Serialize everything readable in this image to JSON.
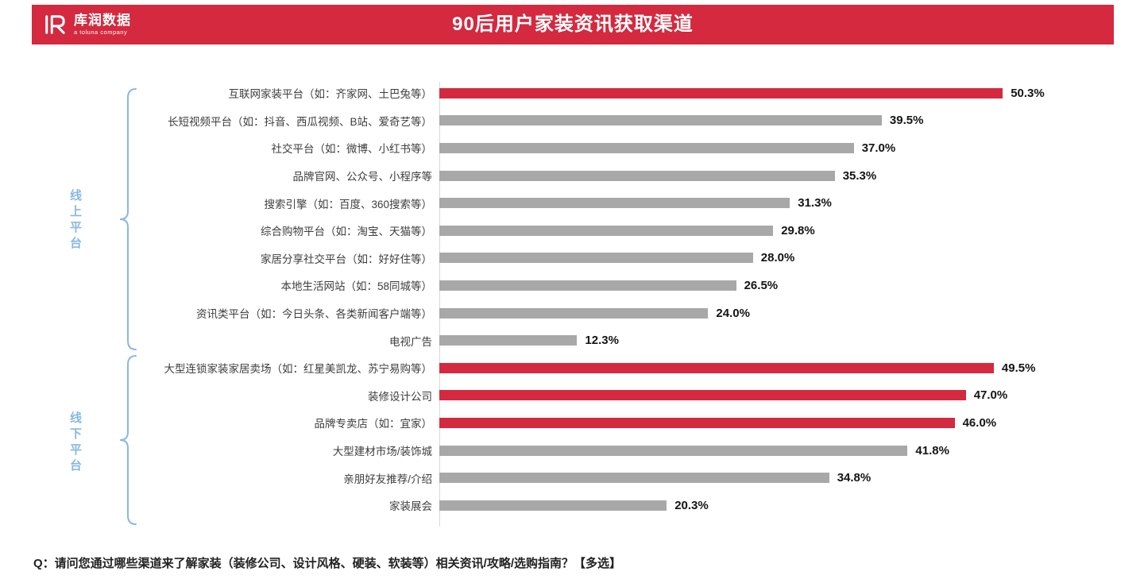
{
  "header": {
    "logo_name": "库润数据",
    "logo_tagline": "a toluna company",
    "title": "90后用户家装资讯获取渠道"
  },
  "colors": {
    "red": "#d4293f",
    "gray": "#a8a8a8",
    "blue": "#8ab8e0"
  },
  "footer": {
    "question": "Q：请问您通过哪些渠道来了解家装（装修公司、设计风格、硬装、软装等）相关资讯/攻略/选购指南？【多选】"
  },
  "chart_data": {
    "type": "bar",
    "orientation": "horizontal",
    "title": "90后用户家装资讯获取渠道",
    "xlim": [
      0,
      55
    ],
    "unit": "%",
    "legend": "none",
    "groups": [
      {
        "label": "线上平台",
        "items": [
          {
            "label": "互联网家装平台（如：齐家网、土巴兔等）",
            "value": 50.3,
            "value_label": "50.3%",
            "highlight": true
          },
          {
            "label": "长短视频平台（如：抖音、西瓜视频、B站、爱奇艺等）",
            "value": 39.5,
            "value_label": "39.5%",
            "highlight": false
          },
          {
            "label": "社交平台（如：微博、小红书等）",
            "value": 37.0,
            "value_label": "37.0%",
            "highlight": false
          },
          {
            "label": "品牌官网、公众号、小程序等",
            "value": 35.3,
            "value_label": "35.3%",
            "highlight": false
          },
          {
            "label": "搜索引擎（如：百度、360搜索等）",
            "value": 31.3,
            "value_label": "31.3%",
            "highlight": false
          },
          {
            "label": "综合购物平台（如：淘宝、天猫等）",
            "value": 29.8,
            "value_label": "29.8%",
            "highlight": false
          },
          {
            "label": "家居分享社交平台（如：好好住等）",
            "value": 28.0,
            "value_label": "28.0%",
            "highlight": false
          },
          {
            "label": "本地生活网站（如：58同城等）",
            "value": 26.5,
            "value_label": "26.5%",
            "highlight": false
          },
          {
            "label": "资讯类平台（如：今日头条、各类新闻客户端等）",
            "value": 24.0,
            "value_label": "24.0%",
            "highlight": false
          },
          {
            "label": "电视广告",
            "value": 12.3,
            "value_label": "12.3%",
            "highlight": false
          }
        ]
      },
      {
        "label": "线下平台",
        "items": [
          {
            "label": "大型连锁家装家居卖场（如：红星美凯龙、苏宁易购等）",
            "value": 49.5,
            "value_label": "49.5%",
            "highlight": true
          },
          {
            "label": "装修设计公司",
            "value": 47.0,
            "value_label": "47.0%",
            "highlight": true
          },
          {
            "label": "品牌专卖店（如：宜家）",
            "value": 46.0,
            "value_label": "46.0%",
            "highlight": true
          },
          {
            "label": "大型建材市场/装饰城",
            "value": 41.8,
            "value_label": "41.8%",
            "highlight": false
          },
          {
            "label": "亲朋好友推荐/介绍",
            "value": 34.8,
            "value_label": "34.8%",
            "highlight": false
          },
          {
            "label": "家装展会",
            "value": 20.3,
            "value_label": "20.3%",
            "highlight": false
          }
        ]
      }
    ]
  }
}
